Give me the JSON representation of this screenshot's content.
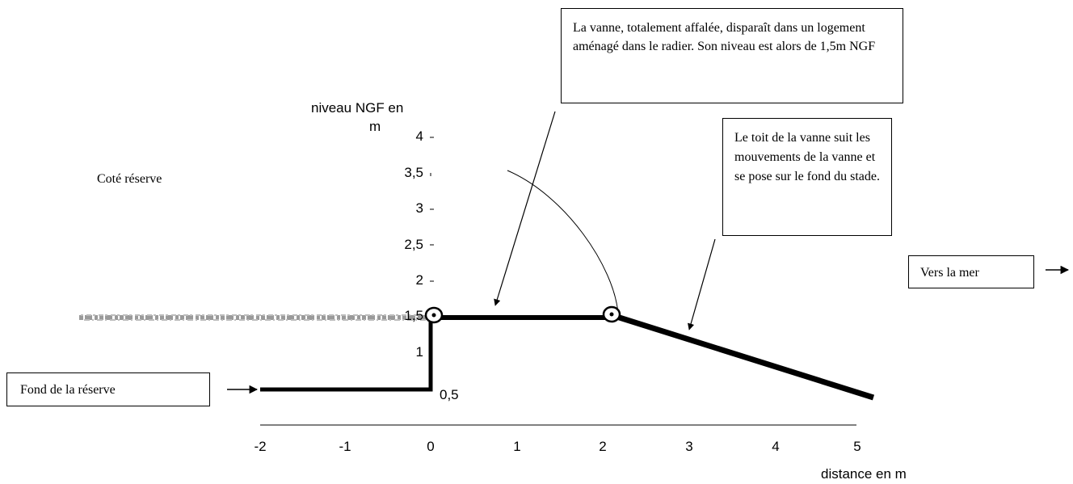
{
  "annotations": {
    "vanne_affalee": "La vanne, totalement affalée, disparaît dans un logement aménagé dans le radier. Son niveau est alors de 1,5m NGF",
    "toit_vanne": "Le toit de la vanne suit les mouvements de la vanne et se pose sur le fond du stade.",
    "fond_reserve": "Fond de la réserve",
    "vers_la_mer": "Vers la mer",
    "cote_reserve": "Coté réserve"
  },
  "axes": {
    "y_label_line1": "niveau NGF en",
    "y_label_line2": "m",
    "y_ticks": [
      "4",
      "3,5",
      "3",
      "2,5",
      "2",
      "1,5",
      "1"
    ],
    "y_extra_label": "0,5",
    "x_ticks": [
      "-2",
      "-1",
      "0",
      "1",
      "2",
      "3",
      "4",
      "5"
    ],
    "x_label": "distance en m"
  },
  "profile": {
    "reserve_floor_level_m": 0.5,
    "radier_level_m": 1.5,
    "hinge_points_m": [
      [
        0,
        1.5
      ],
      [
        2,
        1.5
      ]
    ],
    "roof_end_m": [
      5,
      0.35
    ],
    "arc_radius_m": 2.0
  },
  "colors": {
    "line": "#000000",
    "hatch": "#9a9a9a",
    "background": "#ffffff"
  }
}
